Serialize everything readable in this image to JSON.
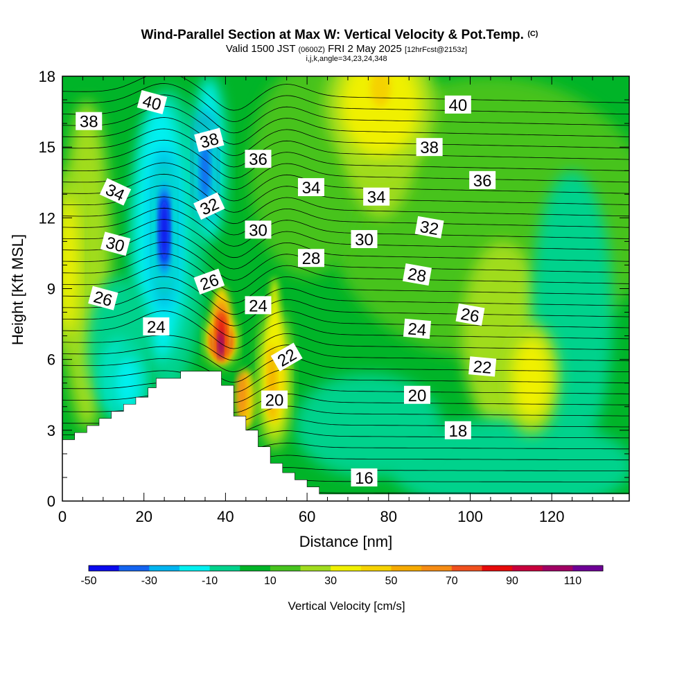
{
  "chart_data": {
    "type": "contour",
    "title": "Wind-Parallel Section at Max W: Vertical Velocity & Pot.Temp.",
    "title_mark": "(C)",
    "subtitle_main": "Valid 1500 JST",
    "subtitle_utc": "(0600Z)",
    "subtitle_date": "FRI 2 May 2025",
    "subtitle_run": "[12hrFcst@2153z]",
    "info_line": "i,j,k,angle=34,23,24,348",
    "xlabel": "Distance [nm]",
    "ylabel": "Height [Kft MSL]",
    "xlim": [
      0,
      139
    ],
    "ylim": [
      0,
      18
    ],
    "x_ticks": [
      "0",
      "20",
      "40",
      "60",
      "80",
      "100",
      "120"
    ],
    "y_ticks": [
      "0",
      "3",
      "6",
      "9",
      "12",
      "15",
      "18"
    ],
    "colorbar_label": "Vertical Velocity [cm/s]",
    "colorbar_levels": [
      -50,
      -40,
      -30,
      -20,
      -10,
      0,
      10,
      20,
      30,
      40,
      50,
      60,
      70,
      80,
      90,
      100,
      110,
      120
    ],
    "colorbar_tick_labels": [
      "-50",
      "-30",
      "-10",
      "10",
      "30",
      "50",
      "70",
      "90",
      "110"
    ],
    "colorbar_colors": [
      "#0a0aee",
      "#1464f0",
      "#00b4f0",
      "#00f0f0",
      "#00d28c",
      "#00b428",
      "#46c31e",
      "#a0dc1e",
      "#f0f000",
      "#f5d200",
      "#f5aa00",
      "#f58c14",
      "#f0501e",
      "#e60a0a",
      "#c8003c",
      "#a00064",
      "#6e0096"
    ],
    "terrain_steps": [
      [
        0,
        2.6
      ],
      [
        3,
        2.9
      ],
      [
        6,
        3.2
      ],
      [
        9,
        3.5
      ],
      [
        12,
        3.8
      ],
      [
        15,
        4.1
      ],
      [
        18,
        4.4
      ],
      [
        21,
        4.8
      ],
      [
        23,
        5.2
      ],
      [
        29,
        5.5
      ],
      [
        39,
        5.5
      ],
      [
        39,
        4.9
      ],
      [
        42,
        4.9
      ],
      [
        42,
        3.6
      ],
      [
        45,
        3.6
      ],
      [
        45,
        3.0
      ],
      [
        48,
        3.0
      ],
      [
        48,
        2.3
      ],
      [
        51,
        2.3
      ],
      [
        51,
        1.6
      ],
      [
        54,
        1.6
      ],
      [
        54,
        1.2
      ],
      [
        57,
        1.2
      ],
      [
        57,
        0.9
      ],
      [
        60,
        0.9
      ],
      [
        60,
        0.6
      ],
      [
        63,
        0.6
      ],
      [
        63,
        0.3
      ],
      [
        139,
        0.3
      ]
    ],
    "theta_labels": [
      {
        "text": "38",
        "x": 6.5,
        "y": 16.1,
        "angle": 0
      },
      {
        "text": "40",
        "x": 22,
        "y": 16.9,
        "angle": 15
      },
      {
        "text": "38",
        "x": 36,
        "y": 15.3,
        "angle": -15
      },
      {
        "text": "36",
        "x": 48,
        "y": 14.5,
        "angle": 0
      },
      {
        "text": "34",
        "x": 13,
        "y": 13.1,
        "angle": 25
      },
      {
        "text": "32",
        "x": 36,
        "y": 12.5,
        "angle": -25
      },
      {
        "text": "34",
        "x": 61,
        "y": 13.3,
        "angle": 0
      },
      {
        "text": "34",
        "x": 77,
        "y": 12.9,
        "angle": 0
      },
      {
        "text": "40",
        "x": 97,
        "y": 16.8,
        "angle": 0
      },
      {
        "text": "38",
        "x": 90,
        "y": 15.0,
        "angle": 0
      },
      {
        "text": "36",
        "x": 103,
        "y": 13.6,
        "angle": 0
      },
      {
        "text": "30",
        "x": 13,
        "y": 10.9,
        "angle": 15
      },
      {
        "text": "30",
        "x": 48,
        "y": 11.5,
        "angle": 0
      },
      {
        "text": "30",
        "x": 74,
        "y": 11.1,
        "angle": 0
      },
      {
        "text": "32",
        "x": 90,
        "y": 11.6,
        "angle": 10
      },
      {
        "text": "28",
        "x": 61,
        "y": 10.3,
        "angle": 0
      },
      {
        "text": "28",
        "x": 87,
        "y": 9.6,
        "angle": 10
      },
      {
        "text": "26",
        "x": 10,
        "y": 8.6,
        "angle": 15
      },
      {
        "text": "26",
        "x": 36,
        "y": 9.3,
        "angle": -20
      },
      {
        "text": "24",
        "x": 48,
        "y": 8.3,
        "angle": 0
      },
      {
        "text": "26",
        "x": 100,
        "y": 7.9,
        "angle": 10
      },
      {
        "text": "24",
        "x": 23,
        "y": 7.4,
        "angle": 0
      },
      {
        "text": "24",
        "x": 87,
        "y": 7.3,
        "angle": 5
      },
      {
        "text": "22",
        "x": 55,
        "y": 6.1,
        "angle": -30
      },
      {
        "text": "22",
        "x": 103,
        "y": 5.7,
        "angle": 5
      },
      {
        "text": "20",
        "x": 52,
        "y": 4.3,
        "angle": 0
      },
      {
        "text": "20",
        "x": 87,
        "y": 4.5,
        "angle": 0
      },
      {
        "text": "18",
        "x": 97,
        "y": 3.0,
        "angle": 0
      },
      {
        "text": "16",
        "x": 74,
        "y": 1.0,
        "angle": 0
      }
    ],
    "w_features": [
      {
        "label": "background-updraft",
        "value": 10,
        "x": 70,
        "y": 9,
        "rx": 70,
        "ry": 9
      },
      {
        "label": "upper-updraft-band",
        "value": 35,
        "x": 78,
        "y": 16.8,
        "rx": 8,
        "ry": 1.8
      },
      {
        "label": "right-updraft-lobe",
        "value": 35,
        "x": 115,
        "y": 5.2,
        "rx": 4,
        "ry": 1.4
      },
      {
        "label": "left-edge-updraft",
        "value": 35,
        "x": 1.5,
        "y": 10,
        "rx": 2,
        "ry": 2.4
      },
      {
        "label": "mountain-wave-updraft",
        "value": 110,
        "x": 39,
        "y": 6.8,
        "rx": 2,
        "ry": 0.6
      },
      {
        "label": "secondary-updraft",
        "value": 45,
        "x": 52,
        "y": 5.2,
        "rx": 2.2,
        "ry": 1.8
      },
      {
        "label": "primary-downdraft",
        "value": -50,
        "x": 25,
        "y": 11.5,
        "rx": 1.3,
        "ry": 1.7
      },
      {
        "label": "upper-downdraft",
        "value": -40,
        "x": 35,
        "y": 14.0,
        "rx": 1.2,
        "ry": 1.4
      },
      {
        "label": "lower-downdraft",
        "value": -25,
        "x": 16,
        "y": 5.0,
        "rx": 3,
        "ry": 1.0
      }
    ]
  }
}
